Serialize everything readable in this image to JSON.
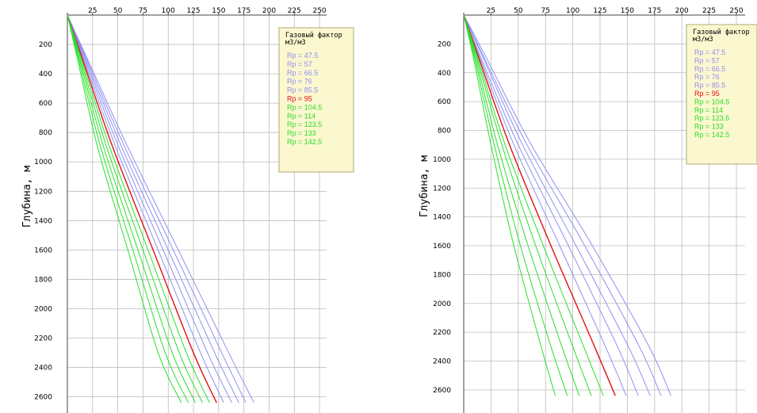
{
  "colors": {
    "grid": "#bcbcbc",
    "legend_bg": "#fbf7cf",
    "legend_border": "#b0aa7a",
    "blue": "#8f8ff2",
    "red": "#e01010",
    "green": "#28e028"
  },
  "chart_data": [
    {
      "type": "line",
      "title": "",
      "ylabel": "Глубина, м",
      "xlabel": "",
      "xlim": [
        0,
        255
      ],
      "ylim": [
        0,
        2700
      ],
      "y_inverted": true,
      "x_ticks": [
        "25",
        "50",
        "75",
        "100",
        "125",
        "150",
        "175",
        "200",
        "225",
        "250"
      ],
      "y_ticks": [
        "200",
        "400",
        "600",
        "800",
        "1000",
        "1200",
        "1400",
        "1600",
        "1800",
        "2000",
        "2200",
        "2400",
        "2600"
      ],
      "legend": {
        "title_line1": "Газовый фактор",
        "title_line2": "м3/м3",
        "position": "top-right"
      },
      "series": [
        {
          "name": "Rp = 47.5",
          "color": "blue",
          "x": [
            0,
            20,
            60,
            110,
            160,
            185
          ],
          "y": [
            0,
            300,
            900,
            1600,
            2300,
            2640
          ]
        },
        {
          "name": "Rp = 57",
          "color": "blue",
          "x": [
            0,
            19,
            57,
            105,
            153,
            177
          ],
          "y": [
            0,
            300,
            900,
            1600,
            2300,
            2640
          ]
        },
        {
          "name": "Rp = 66.5",
          "color": "blue",
          "x": [
            0,
            18,
            54,
            100,
            146,
            170
          ],
          "y": [
            0,
            300,
            900,
            1600,
            2300,
            2640
          ]
        },
        {
          "name": "Rp = 76",
          "color": "blue",
          "x": [
            0,
            17,
            51,
            95,
            139,
            163
          ],
          "y": [
            0,
            300,
            900,
            1600,
            2300,
            2640
          ]
        },
        {
          "name": "Rp = 85.5",
          "color": "blue",
          "x": [
            0,
            16,
            48,
            90,
            132,
            155
          ],
          "y": [
            0,
            300,
            900,
            1600,
            2300,
            2640
          ]
        },
        {
          "name": "Rp = 95",
          "color": "red",
          "x": [
            0,
            15,
            45,
            85,
            125,
            148
          ],
          "y": [
            0,
            300,
            900,
            1600,
            2300,
            2640
          ]
        },
        {
          "name": "Rp = 104.5",
          "color": "green",
          "x": [
            0,
            14,
            42,
            80,
            118,
            141
          ],
          "y": [
            0,
            300,
            900,
            1600,
            2300,
            2640
          ]
        },
        {
          "name": "Rp = 114",
          "color": "green",
          "x": [
            0,
            13,
            39,
            75,
            111,
            134
          ],
          "y": [
            0,
            300,
            900,
            1600,
            2300,
            2640
          ]
        },
        {
          "name": "Rp = 123.5",
          "color": "green",
          "x": [
            0,
            12,
            36,
            70,
            104,
            127
          ],
          "y": [
            0,
            300,
            900,
            1600,
            2300,
            2640
          ]
        },
        {
          "name": "Rp = 133",
          "color": "green",
          "x": [
            0,
            11,
            33,
            65,
            97,
            120
          ],
          "y": [
            0,
            300,
            900,
            1600,
            2300,
            2640
          ]
        },
        {
          "name": "Rp = 142.5",
          "color": "green",
          "x": [
            0,
            10,
            30,
            60,
            90,
            113
          ],
          "y": [
            0,
            300,
            900,
            1600,
            2300,
            2640
          ]
        }
      ]
    },
    {
      "type": "line",
      "title": "",
      "ylabel": "Глубина, м",
      "xlabel": "",
      "xlim": [
        0,
        255
      ],
      "ylim": [
        0,
        2700
      ],
      "y_inverted": true,
      "x_ticks": [
        "25",
        "50",
        "75",
        "100",
        "125",
        "150",
        "175",
        "200",
        "225",
        "250"
      ],
      "y_ticks": [
        "200",
        "400",
        "600",
        "800",
        "1000",
        "1200",
        "1400",
        "1600",
        "1800",
        "2000",
        "2200",
        "2400",
        "2600"
      ],
      "legend": {
        "title_line1": "Газовый фактор",
        "title_line2": "м3/м3",
        "position": "top-right"
      },
      "series": [
        {
          "name": "Rp = 47.5",
          "color": "blue",
          "x": [
            0,
            21,
            62,
            118,
            170,
            190
          ],
          "y": [
            0,
            300,
            900,
            1600,
            2300,
            2640
          ]
        },
        {
          "name": "Rp = 57",
          "color": "blue",
          "x": [
            0,
            19,
            58,
            111,
            161,
            181
          ],
          "y": [
            0,
            300,
            900,
            1600,
            2300,
            2640
          ]
        },
        {
          "name": "Rp = 66.5",
          "color": "blue",
          "x": [
            0,
            18,
            54,
            103,
            151,
            171
          ],
          "y": [
            0,
            300,
            900,
            1600,
            2300,
            2640
          ]
        },
        {
          "name": "Rp = 76",
          "color": "blue",
          "x": [
            0,
            16,
            50,
            96,
            141,
            160
          ],
          "y": [
            0,
            300,
            900,
            1600,
            2300,
            2640
          ]
        },
        {
          "name": "Rp = 85.5",
          "color": "blue",
          "x": [
            0,
            15,
            46,
            88,
            130,
            149
          ],
          "y": [
            0,
            300,
            900,
            1600,
            2300,
            2640
          ]
        },
        {
          "name": "Rp = 95",
          "color": "red",
          "x": [
            0,
            14,
            42,
            80,
            120,
            139
          ],
          "y": [
            0,
            300,
            900,
            1600,
            2300,
            2640
          ]
        },
        {
          "name": "Rp = 104.5",
          "color": "green",
          "x": [
            0,
            13,
            38,
            73,
            110,
            128
          ],
          "y": [
            0,
            300,
            900,
            1600,
            2300,
            2640
          ]
        },
        {
          "name": "Rp = 114",
          "color": "green",
          "x": [
            0,
            12,
            35,
            66,
            100,
            117
          ],
          "y": [
            0,
            300,
            900,
            1600,
            2300,
            2640
          ]
        },
        {
          "name": "Rp = 123.5",
          "color": "green",
          "x": [
            0,
            11,
            31,
            59,
            90,
            106
          ],
          "y": [
            0,
            300,
            900,
            1600,
            2300,
            2640
          ]
        },
        {
          "name": "Rp = 133",
          "color": "green",
          "x": [
            0,
            10,
            28,
            52,
            80,
            95
          ],
          "y": [
            0,
            300,
            900,
            1600,
            2300,
            2640
          ]
        },
        {
          "name": "Rp = 142.5",
          "color": "green",
          "x": [
            0,
            9,
            25,
            46,
            71,
            84
          ],
          "y": [
            0,
            300,
            900,
            1600,
            2300,
            2640
          ]
        }
      ]
    }
  ]
}
